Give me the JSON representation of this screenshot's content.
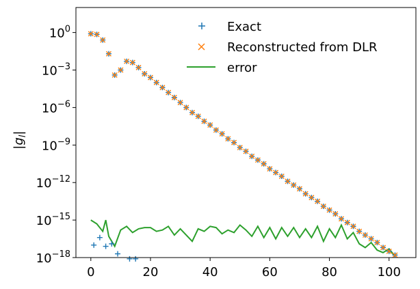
{
  "chart_data": {
    "type": "line",
    "title": "",
    "xlabel": "",
    "ylabel": "|g_l|",
    "ylabel_main": "|g",
    "ylabel_sub": "l",
    "ylabel_tail": "|",
    "xlim": [
      -5,
      109
    ],
    "ylim_log10": [
      -18,
      2
    ],
    "y_scale": "log",
    "x_ticks": [
      0,
      20,
      40,
      60,
      80,
      100
    ],
    "y_ticks": [
      {
        "exp": 0,
        "base": "10",
        "sup": "0"
      },
      {
        "exp": -3,
        "base": "10",
        "sup": "−3"
      },
      {
        "exp": -6,
        "base": "10",
        "sup": "−6"
      },
      {
        "exp": -9,
        "base": "10",
        "sup": "−9"
      },
      {
        "exp": -12,
        "base": "10",
        "sup": "−12"
      },
      {
        "exp": -15,
        "base": "10",
        "sup": "−15"
      },
      {
        "exp": -18,
        "base": "10",
        "sup": "−18"
      }
    ],
    "legend_position": "top-right",
    "grid": false,
    "series": [
      {
        "name": "Exact",
        "marker": "plus",
        "color": "#1f77b4",
        "x": [
          0,
          2,
          4,
          6,
          8,
          10,
          12,
          14,
          16,
          18,
          20,
          22,
          24,
          26,
          28,
          30,
          32,
          34,
          36,
          38,
          40,
          42,
          44,
          46,
          48,
          50,
          52,
          54,
          56,
          58,
          60,
          62,
          64,
          66,
          68,
          70,
          72,
          74,
          76,
          78,
          80,
          82,
          84,
          86,
          88,
          90,
          92,
          94,
          96,
          98,
          100,
          102,
          1,
          3,
          5,
          7,
          9,
          11,
          13,
          15
        ],
        "log10_y": [
          -0.1,
          -0.15,
          -0.6,
          -1.7,
          -3.4,
          -3.0,
          -2.3,
          -2.4,
          -2.8,
          -3.3,
          -3.6,
          -4.0,
          -4.4,
          -4.8,
          -5.2,
          -5.6,
          -6.0,
          -6.4,
          -6.7,
          -7.1,
          -7.4,
          -7.8,
          -8.1,
          -8.5,
          -8.8,
          -9.2,
          -9.5,
          -9.9,
          -10.2,
          -10.5,
          -10.9,
          -11.2,
          -11.5,
          -11.9,
          -12.2,
          -12.5,
          -12.9,
          -13.2,
          -13.5,
          -13.9,
          -14.2,
          -14.5,
          -14.9,
          -15.2,
          -15.5,
          -15.9,
          -16.2,
          -16.5,
          -16.8,
          -17.2,
          -17.5,
          -17.8,
          -17.0,
          -16.4,
          -17.1,
          -16.9,
          -17.7,
          -18.2,
          -18.1,
          -18.1
        ]
      },
      {
        "name": "Reconstructed from DLR",
        "marker": "x",
        "color": "#ff7f0e",
        "x": [
          0,
          2,
          4,
          6,
          8,
          10,
          12,
          14,
          16,
          18,
          20,
          22,
          24,
          26,
          28,
          30,
          32,
          34,
          36,
          38,
          40,
          42,
          44,
          46,
          48,
          50,
          52,
          54,
          56,
          58,
          60,
          62,
          64,
          66,
          68,
          70,
          72,
          74,
          76,
          78,
          80,
          82,
          84,
          86,
          88,
          90,
          92,
          94,
          96,
          98,
          100,
          102
        ],
        "log10_y": [
          -0.1,
          -0.15,
          -0.6,
          -1.7,
          -3.4,
          -3.0,
          -2.3,
          -2.4,
          -2.8,
          -3.3,
          -3.6,
          -4.0,
          -4.4,
          -4.8,
          -5.2,
          -5.6,
          -6.0,
          -6.4,
          -6.7,
          -7.1,
          -7.4,
          -7.8,
          -8.1,
          -8.5,
          -8.8,
          -9.2,
          -9.5,
          -9.9,
          -10.2,
          -10.5,
          -10.9,
          -11.2,
          -11.5,
          -11.9,
          -12.2,
          -12.5,
          -12.9,
          -13.2,
          -13.5,
          -13.9,
          -14.2,
          -14.5,
          -14.9,
          -15.2,
          -15.5,
          -15.9,
          -16.2,
          -16.5,
          -16.8,
          -17.2,
          -17.5,
          -17.8
        ]
      },
      {
        "name": "error",
        "marker": "none",
        "color": "#2ca02c",
        "x": [
          0,
          2,
          4,
          5,
          6,
          8,
          10,
          12,
          14,
          16,
          18,
          20,
          22,
          24,
          26,
          28,
          30,
          32,
          34,
          36,
          38,
          40,
          42,
          44,
          46,
          48,
          50,
          52,
          54,
          56,
          58,
          60,
          62,
          64,
          66,
          68,
          70,
          72,
          74,
          76,
          78,
          80,
          82,
          84,
          86,
          88,
          90,
          92,
          94,
          96,
          98,
          100,
          102
        ],
        "log10_y": [
          -15.0,
          -15.3,
          -15.9,
          -15.0,
          -16.3,
          -17.1,
          -15.8,
          -15.5,
          -16.0,
          -15.7,
          -15.6,
          -15.6,
          -15.9,
          -15.8,
          -15.5,
          -16.2,
          -15.7,
          -16.2,
          -16.7,
          -15.7,
          -15.9,
          -15.5,
          -15.6,
          -16.1,
          -15.8,
          -16.0,
          -15.4,
          -15.8,
          -16.3,
          -15.5,
          -16.4,
          -15.6,
          -16.5,
          -15.6,
          -16.3,
          -15.6,
          -16.4,
          -15.7,
          -16.4,
          -15.5,
          -16.7,
          -15.7,
          -16.4,
          -15.4,
          -16.5,
          -16.0,
          -16.9,
          -17.2,
          -16.8,
          -17.4,
          -17.6,
          -17.3,
          -17.9
        ]
      }
    ]
  }
}
